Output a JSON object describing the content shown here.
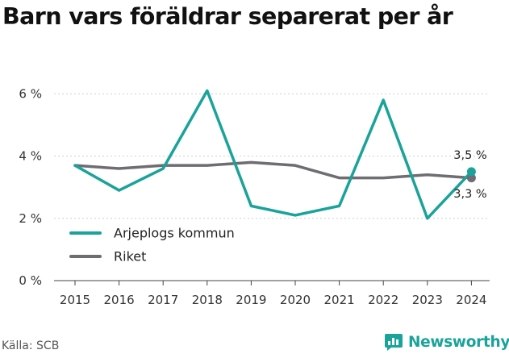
{
  "title": "Barn vars föräldrar separerat per år",
  "source": "Källa: SCB",
  "brand": {
    "name": "Newsworthy",
    "icon": "bar-chart-speech-icon",
    "color": "#1aa39a"
  },
  "chart_data": {
    "type": "line",
    "x": [
      2015,
      2016,
      2017,
      2018,
      2019,
      2020,
      2021,
      2022,
      2023,
      2024
    ],
    "y_ticks": [
      "0 %",
      "2 %",
      "4 %",
      "6 %"
    ],
    "ylim": [
      0,
      6.5
    ],
    "grid": true,
    "legend_position": "bottom-left",
    "series": [
      {
        "name": "Arjeplogs kommun",
        "color": "#1aa39a",
        "values": [
          3.7,
          2.9,
          3.6,
          6.1,
          2.4,
          2.1,
          2.4,
          5.8,
          2.0,
          3.5
        ],
        "end_label": "3,5 %"
      },
      {
        "name": "Riket",
        "color": "#6f6c72",
        "values": [
          3.7,
          3.6,
          3.7,
          3.7,
          3.8,
          3.7,
          3.3,
          3.3,
          3.4,
          3.3
        ],
        "end_label": "3,3 %"
      }
    ]
  }
}
